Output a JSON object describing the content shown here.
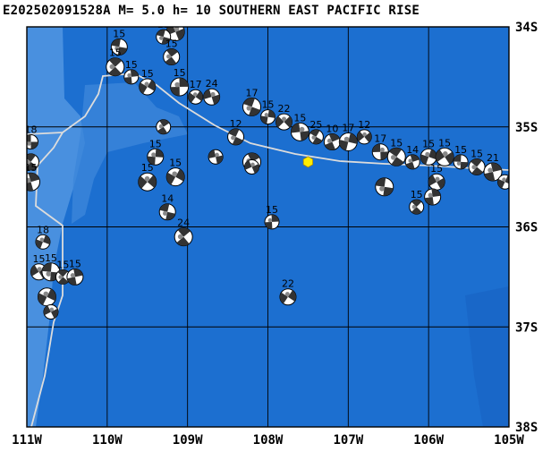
{
  "title": "E202502091528A  M= 5.0  h= 10 SOUTHERN EAST PACIFIC RISE",
  "colors": {
    "ocean": "#1c6fd0",
    "ocean_shallow": "#4f93e0",
    "ocean_deep": "#1a66c6",
    "grid": "#000000",
    "plate_boundary": "#dcdcdc",
    "event_marker": "#ffee00"
  },
  "lon_ticks": [
    "111W",
    "110W",
    "109W",
    "108W",
    "107W",
    "106W",
    "105W"
  ],
  "lat_ticks": [
    "34S",
    "35S",
    "36S",
    "37S",
    "38S"
  ],
  "event": {
    "lon": -107.5,
    "lat": -35.35,
    "label": "event-star"
  },
  "mechanisms": [
    {
      "lon": -110.95,
      "lat": -35.15,
      "label": "18"
    },
    {
      "lon": -110.95,
      "lat": -35.35,
      "label": ""
    },
    {
      "lon": -110.95,
      "lat": -35.55,
      "label": "15"
    },
    {
      "lon": -110.8,
      "lat": -36.15,
      "label": "18"
    },
    {
      "lon": -110.85,
      "lat": -36.45,
      "label": "15"
    },
    {
      "lon": -110.7,
      "lat": -36.45,
      "label": "15"
    },
    {
      "lon": -110.55,
      "lat": -36.5,
      "label": "15"
    },
    {
      "lon": -110.4,
      "lat": -36.5,
      "label": "15"
    },
    {
      "lon": -110.75,
      "lat": -36.7,
      "label": ""
    },
    {
      "lon": -110.7,
      "lat": -36.85,
      "label": ""
    },
    {
      "lon": -109.85,
      "lat": -34.2,
      "label": "15"
    },
    {
      "lon": -109.9,
      "lat": -34.4,
      "label": "15"
    },
    {
      "lon": -109.7,
      "lat": -34.5,
      "label": "15"
    },
    {
      "lon": -109.5,
      "lat": -34.6,
      "label": "15"
    },
    {
      "lon": -109.15,
      "lat": -34.05,
      "label": "26"
    },
    {
      "lon": -109.3,
      "lat": -34.1,
      "label": "15"
    },
    {
      "lon": -109.2,
      "lat": -34.3,
      "label": "15"
    },
    {
      "lon": -109.1,
      "lat": -34.6,
      "label": "15"
    },
    {
      "lon": -108.9,
      "lat": -34.7,
      "label": "17"
    },
    {
      "lon": -108.7,
      "lat": -34.7,
      "label": "24"
    },
    {
      "lon": -108.2,
      "lat": -34.8,
      "label": "17"
    },
    {
      "lon": -109.3,
      "lat": -35.0,
      "label": ""
    },
    {
      "lon": -109.4,
      "lat": -35.3,
      "label": "15"
    },
    {
      "lon": -109.5,
      "lat": -35.55,
      "label": "15"
    },
    {
      "lon": -108.65,
      "lat": -35.3,
      "label": ""
    },
    {
      "lon": -108.4,
      "lat": -35.1,
      "label": "12"
    },
    {
      "lon": -108.2,
      "lat": -35.35,
      "label": ""
    },
    {
      "lon": -108.0,
      "lat": -34.9,
      "label": "15"
    },
    {
      "lon": -107.8,
      "lat": -34.95,
      "label": "22"
    },
    {
      "lon": -107.6,
      "lat": -35.05,
      "label": "15"
    },
    {
      "lon": -107.4,
      "lat": -35.1,
      "label": "25"
    },
    {
      "lon": -107.2,
      "lat": -35.15,
      "label": "10"
    },
    {
      "lon": -107.0,
      "lat": -35.15,
      "label": "17"
    },
    {
      "lon": -106.8,
      "lat": -35.1,
      "label": "12"
    },
    {
      "lon": -106.6,
      "lat": -35.25,
      "label": "17"
    },
    {
      "lon": -106.4,
      "lat": -35.3,
      "label": "15"
    },
    {
      "lon": -106.2,
      "lat": -35.35,
      "label": "14"
    },
    {
      "lon": -106.0,
      "lat": -35.3,
      "label": "15"
    },
    {
      "lon": -105.8,
      "lat": -35.3,
      "label": "15"
    },
    {
      "lon": -105.6,
      "lat": -35.35,
      "label": "15"
    },
    {
      "lon": -105.4,
      "lat": -35.4,
      "label": "15"
    },
    {
      "lon": -105.2,
      "lat": -35.45,
      "label": "21"
    },
    {
      "lon": -105.05,
      "lat": -35.55,
      "label": ""
    },
    {
      "lon": -105.9,
      "lat": -35.55,
      "label": "15"
    },
    {
      "lon": -106.55,
      "lat": -35.6,
      "label": ""
    },
    {
      "lon": -106.15,
      "lat": -35.8,
      "label": "15"
    },
    {
      "lon": -105.95,
      "lat": -35.7,
      "label": ""
    },
    {
      "lon": -109.15,
      "lat": -35.5,
      "label": "15"
    },
    {
      "lon": -108.2,
      "lat": -35.4,
      "label": ""
    },
    {
      "lon": -109.25,
      "lat": -35.85,
      "label": "14"
    },
    {
      "lon": -109.05,
      "lat": -36.1,
      "label": "24"
    },
    {
      "lon": -107.95,
      "lat": -35.95,
      "label": "15"
    },
    {
      "lon": -107.75,
      "lat": -36.7,
      "label": "22"
    }
  ]
}
